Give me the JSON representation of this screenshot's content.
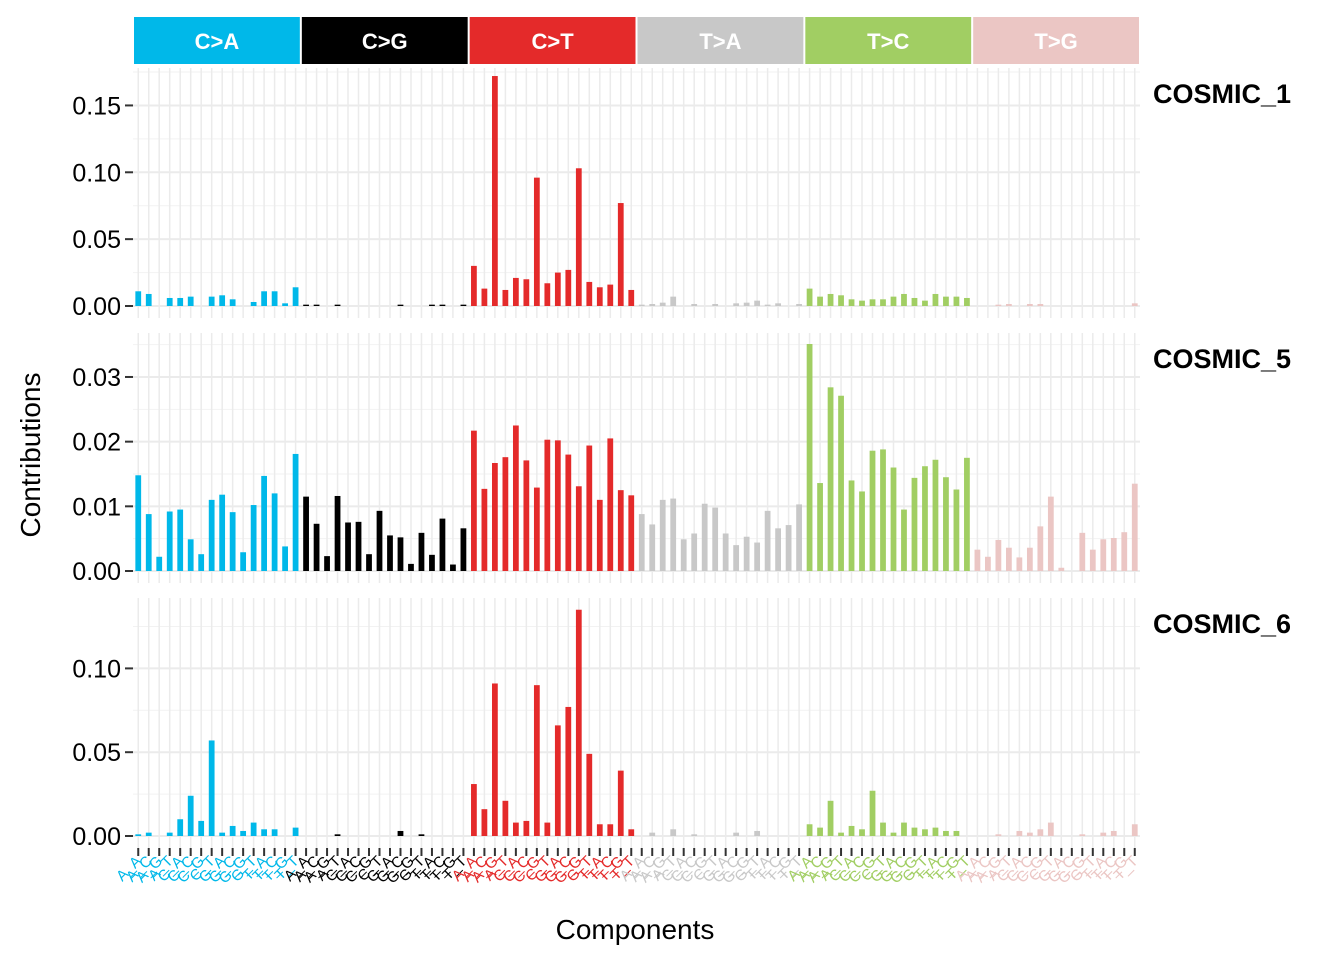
{
  "chart_data": {
    "type": "bar",
    "xlabel": "Components",
    "ylabel": "Contributions",
    "mutation_types": [
      {
        "label": "C>A",
        "color": "#00B8E9",
        "text_color": "#ffffff"
      },
      {
        "label": "C>G",
        "color": "#000000",
        "text_color": "#ffffff"
      },
      {
        "label": "C>T",
        "color": "#E42A2A",
        "text_color": "#ffffff"
      },
      {
        "label": "T>A",
        "color": "#C8C8C8",
        "text_color": "#ffffff"
      },
      {
        "label": "T>C",
        "color": "#A1CE63",
        "text_color": "#ffffff"
      },
      {
        "label": "T>G",
        "color": "#EBC6C4",
        "text_color": "#ffffff"
      }
    ],
    "contexts": [
      "A_A",
      "A_C",
      "A_G",
      "A_T",
      "C_A",
      "C_C",
      "C_G",
      "C_T",
      "G_A",
      "G_C",
      "G_G",
      "G_T",
      "T_A",
      "T_C",
      "T_G",
      "T_T"
    ],
    "grid": true,
    "panels": [
      {
        "name": "COSMIC_1",
        "ylim": [
          0,
          0.178
        ],
        "yticks": [
          0,
          0.05,
          0.1,
          0.15
        ],
        "ytick_labels": [
          "0.00",
          "0.05",
          "0.10",
          "0.15"
        ],
        "values": [
          0.011,
          0.009,
          0.0,
          0.006,
          0.006,
          0.007,
          0.0,
          0.007,
          0.008,
          0.005,
          0.0,
          0.003,
          0.011,
          0.011,
          0.002,
          0.014,
          0.001,
          0.001,
          0.0,
          0.001,
          0.0,
          0.0,
          0.0,
          0.0,
          0.0,
          0.001,
          0.0,
          0.0,
          0.001,
          0.001,
          0.0,
          0.001,
          0.03,
          0.013,
          0.172,
          0.012,
          0.021,
          0.02,
          0.096,
          0.017,
          0.025,
          0.027,
          0.103,
          0.018,
          0.014,
          0.016,
          0.077,
          0.012,
          0.001,
          0.0015,
          0.0025,
          0.007,
          0.0,
          0.0015,
          0.0,
          0.0015,
          0.0,
          0.002,
          0.0025,
          0.004,
          0.001,
          0.002,
          0.0,
          0.0015,
          0.013,
          0.007,
          0.009,
          0.008,
          0.005,
          0.004,
          0.005,
          0.005,
          0.007,
          0.009,
          0.006,
          0.004,
          0.009,
          0.007,
          0.007,
          0.006,
          0.0,
          0.0,
          0.001,
          0.0015,
          0.0,
          0.0015,
          0.0015,
          0.0,
          0.0,
          0.0,
          0.0,
          0.0,
          0.0,
          0.0,
          0.0,
          0.002
        ]
      },
      {
        "name": "COSMIC_5",
        "ylim": [
          0,
          0.0368
        ],
        "yticks": [
          0,
          0.01,
          0.02,
          0.03
        ],
        "ytick_labels": [
          "0.00",
          "0.01",
          "0.02",
          "0.03"
        ],
        "values": [
          0.0148,
          0.0088,
          0.0022,
          0.0092,
          0.0095,
          0.0049,
          0.0026,
          0.011,
          0.0118,
          0.0091,
          0.0029,
          0.0102,
          0.0147,
          0.012,
          0.0038,
          0.0181,
          0.0115,
          0.0073,
          0.0023,
          0.0116,
          0.0075,
          0.0076,
          0.0026,
          0.0093,
          0.0055,
          0.0052,
          0.0011,
          0.0059,
          0.0025,
          0.0081,
          0.001,
          0.0066,
          0.0217,
          0.0127,
          0.0167,
          0.0176,
          0.0225,
          0.0171,
          0.0129,
          0.0203,
          0.0202,
          0.018,
          0.0131,
          0.0194,
          0.011,
          0.0205,
          0.0125,
          0.0117,
          0.0088,
          0.0072,
          0.011,
          0.0112,
          0.0049,
          0.0058,
          0.0104,
          0.0098,
          0.0058,
          0.004,
          0.0053,
          0.0044,
          0.0093,
          0.0066,
          0.0071,
          0.0103,
          0.0351,
          0.0136,
          0.0284,
          0.0271,
          0.014,
          0.0123,
          0.0186,
          0.0188,
          0.016,
          0.0095,
          0.0144,
          0.0162,
          0.0172,
          0.0145,
          0.0126,
          0.0175,
          0.0033,
          0.0022,
          0.0048,
          0.0036,
          0.0021,
          0.0036,
          0.0069,
          0.0115,
          0.0005,
          0.0,
          0.0059,
          0.0033,
          0.0049,
          0.0051,
          0.006,
          0.0135
        ]
      },
      {
        "name": "COSMIC_6",
        "ylim": [
          0,
          0.142
        ],
        "yticks": [
          0,
          0.05,
          0.1
        ],
        "ytick_labels": [
          "0.00",
          "0.05",
          "0.10"
        ],
        "values": [
          0.001,
          0.002,
          0.0,
          0.002,
          0.01,
          0.024,
          0.009,
          0.057,
          0.002,
          0.006,
          0.003,
          0.008,
          0.004,
          0.004,
          0.0,
          0.005,
          0.0,
          0.0,
          0.0,
          0.001,
          0.0,
          0.0,
          0.0,
          0.0,
          0.0,
          0.003,
          0.0,
          0.001,
          0.0,
          0.0,
          0.0,
          0.0,
          0.031,
          0.016,
          0.091,
          0.021,
          0.008,
          0.009,
          0.09,
          0.008,
          0.066,
          0.077,
          0.135,
          0.049,
          0.007,
          0.007,
          0.039,
          0.004,
          0.0,
          0.002,
          0.0,
          0.004,
          0.0,
          0.001,
          0.0,
          0.0,
          0.0,
          0.002,
          0.0,
          0.003,
          0.0,
          0.0,
          0.0,
          0.0,
          0.007,
          0.005,
          0.021,
          0.002,
          0.006,
          0.004,
          0.027,
          0.008,
          0.002,
          0.008,
          0.005,
          0.004,
          0.005,
          0.003,
          0.003,
          0.0,
          0.0,
          0.0,
          0.001,
          0.0,
          0.003,
          0.002,
          0.004,
          0.008,
          0.0,
          0.0,
          0.001,
          0.0,
          0.002,
          0.003,
          0.0,
          0.007
        ]
      }
    ]
  }
}
